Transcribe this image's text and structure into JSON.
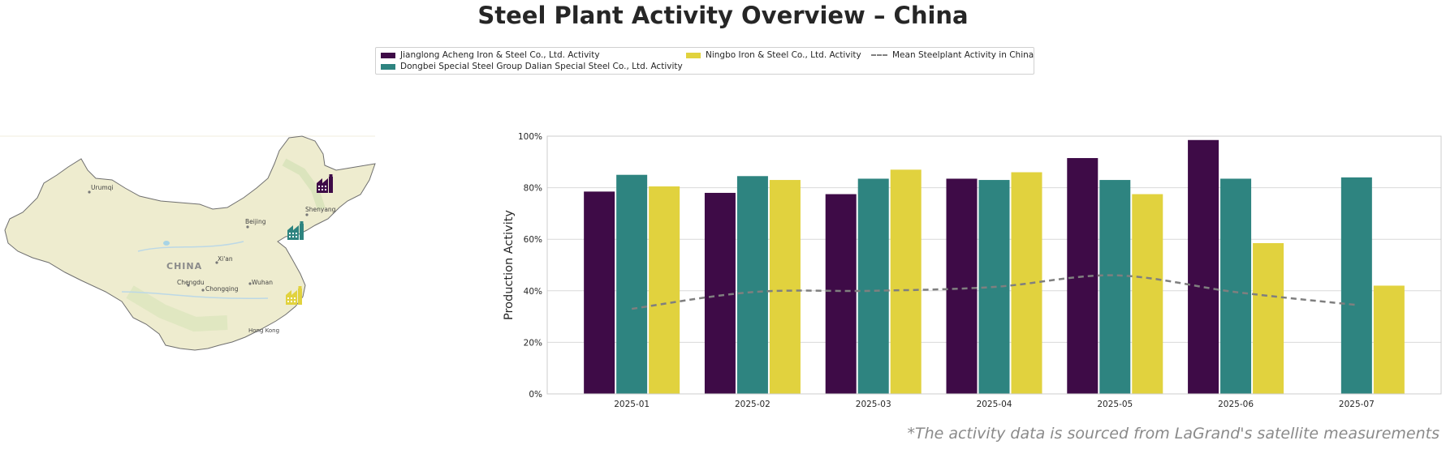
{
  "title": "Steel Plant Activity Overview – China",
  "footnote": "*The activity data is sourced from LaGrand's satellite measurements",
  "legend": {
    "items": [
      {
        "label": "Jianglong Acheng Iron & Steel Co., Ltd. Activity",
        "color": "#3e0b47",
        "kind": "box"
      },
      {
        "label": "Dongbei Special Steel Group Dalian Special Steel Co., Ltd. Activity",
        "color": "#2e8480",
        "kind": "box"
      },
      {
        "label": "Ningbo Iron & Steel Co., Ltd. Activity",
        "color": "#e1d23e",
        "kind": "box"
      },
      {
        "label": "Mean Steelplant Activity in China",
        "color": "#7f7f7f",
        "kind": "dash"
      }
    ]
  },
  "map": {
    "region_label": "CHINA",
    "cities": [
      "Urumqi",
      "Beijing",
      "Shenyang",
      "Xi'an",
      "Chengdu",
      "Chongqing",
      "Wuhan",
      "Hong Kong"
    ],
    "plant_icons": [
      {
        "name": "Jianglong Acheng Iron & Steel Co., Ltd.",
        "icon": "factory-icon",
        "color": "#3e0b47"
      },
      {
        "name": "Dongbei Special Steel Group Dalian Special Steel Co., Ltd.",
        "icon": "factory-icon",
        "color": "#2e8480"
      },
      {
        "name": "Ningbo Iron & Steel Co., Ltd.",
        "icon": "factory-icon",
        "color": "#e1d23e"
      }
    ]
  },
  "chart_data": {
    "type": "bar",
    "ylabel": "Production Activity",
    "xlabel": "",
    "ylim": [
      0,
      100
    ],
    "yticks": [
      "0%",
      "20%",
      "40%",
      "60%",
      "80%",
      "100%"
    ],
    "grid": true,
    "categories": [
      "2025-01",
      "2025-02",
      "2025-03",
      "2025-04",
      "2025-05",
      "2025-06",
      "2025-07"
    ],
    "series": [
      {
        "name": "Jianglong Acheng Iron & Steel Co., Ltd. Activity",
        "color": "#3e0b47",
        "values": [
          78.5,
          78.0,
          77.5,
          83.5,
          91.5,
          98.5,
          null
        ]
      },
      {
        "name": "Dongbei Special Steel Group Dalian Special Steel Co., Ltd. Activity",
        "color": "#2e8480",
        "values": [
          85.0,
          84.5,
          83.5,
          83.0,
          83.0,
          83.5,
          84.0
        ]
      },
      {
        "name": "Ningbo Iron & Steel Co., Ltd. Activity",
        "color": "#e1d23e",
        "values": [
          80.5,
          83.0,
          87.0,
          86.0,
          77.5,
          58.5,
          42.0
        ]
      }
    ],
    "mean_line": {
      "name": "Mean Steelplant Activity in China",
      "color": "#7f7f7f",
      "style": "dashed",
      "values": [
        33.0,
        39.5,
        40.0,
        41.5,
        46.0,
        39.5,
        34.5
      ]
    }
  }
}
